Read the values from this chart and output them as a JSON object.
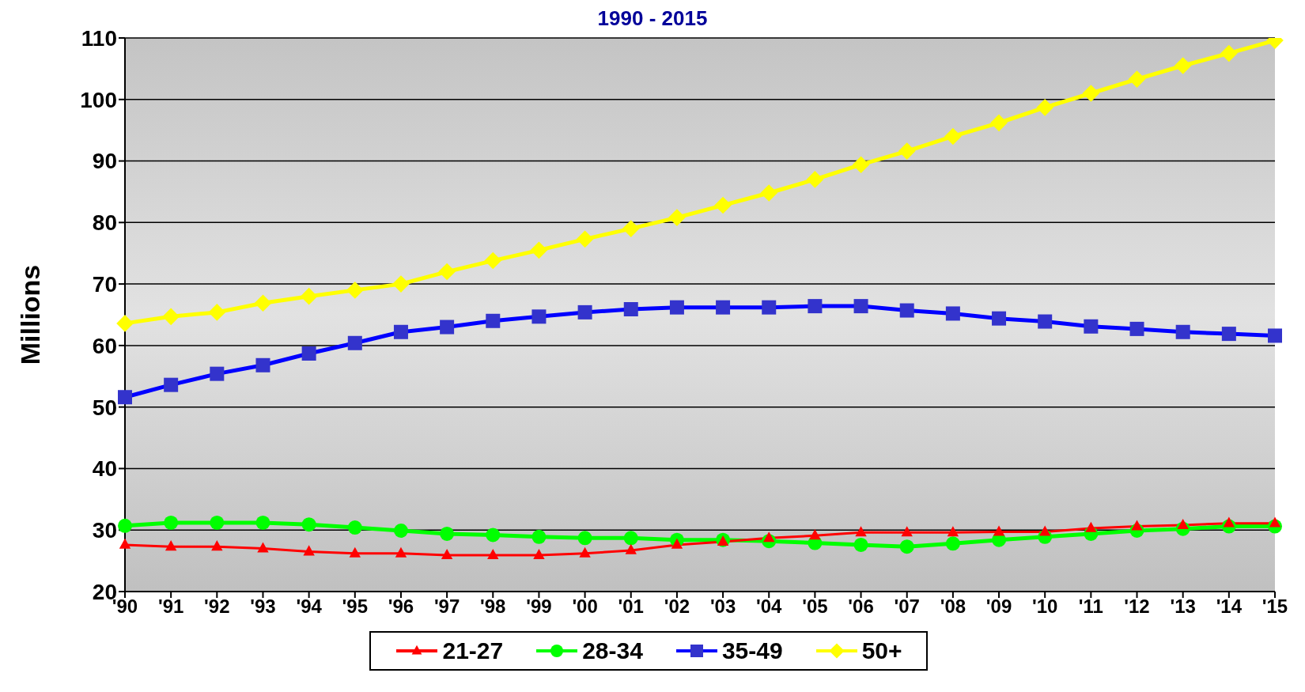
{
  "chart_data": {
    "type": "line",
    "subtitle": "1990 - 2015",
    "ylabel": "Millions",
    "categories": [
      "'90",
      "'91",
      "'92",
      "'93",
      "'94",
      "'95",
      "'96",
      "'97",
      "'98",
      "'99",
      "'00",
      "'01",
      "'02",
      "'03",
      "'04",
      "'05",
      "'06",
      "'07",
      "'08",
      "'09",
      "'10",
      "'11",
      "'12",
      "'13",
      "'14",
      "'15"
    ],
    "ylim": [
      20,
      110
    ],
    "yticks": [
      20,
      30,
      40,
      50,
      60,
      70,
      80,
      90,
      100,
      110
    ],
    "grid": "y",
    "legend": "bottom",
    "line_style": "solid",
    "series": [
      {
        "name": "21-27",
        "color": "#ff0000",
        "marker": "triangle",
        "values": [
          27.6,
          27.3,
          27.3,
          27,
          26.5,
          26.2,
          26.2,
          25.9,
          25.9,
          25.9,
          26.2,
          26.7,
          27.6,
          28.1,
          28.7,
          29.1,
          29.6,
          29.6,
          29.6,
          29.7,
          29.7,
          30.3,
          30.6,
          30.8,
          31.1,
          31.1
        ]
      },
      {
        "name": "28-34",
        "color": "#00ff00",
        "marker": "circle",
        "values": [
          30.7,
          31.2,
          31.2,
          31.2,
          30.9,
          30.4,
          29.9,
          29.4,
          29.2,
          28.9,
          28.7,
          28.7,
          28.4,
          28.4,
          28.2,
          27.9,
          27.6,
          27.3,
          27.8,
          28.4,
          28.9,
          29.4,
          29.9,
          30.2,
          30.6,
          30.6
        ]
      },
      {
        "name": "35-49",
        "color": "#0000ff",
        "marker": "square",
        "values": [
          51.6,
          53.6,
          55.4,
          56.8,
          58.7,
          60.4,
          62.2,
          63,
          64,
          64.7,
          65.4,
          65.9,
          66.2,
          66.2,
          66.2,
          66.4,
          66.4,
          65.7,
          65.2,
          64.4,
          63.9,
          63.1,
          62.7,
          62.2,
          61.9,
          61.6
        ]
      },
      {
        "name": "50+",
        "color": "#ffff00",
        "marker": "diamond",
        "values": [
          63.6,
          64.7,
          65.4,
          66.9,
          68,
          69,
          70,
          72,
          73.8,
          75.5,
          77.3,
          79,
          80.8,
          82.8,
          84.8,
          87,
          89.4,
          91.6,
          94,
          96.2,
          98.7,
          101,
          103.3,
          105.5,
          107.5,
          109.6
        ]
      }
    ]
  }
}
